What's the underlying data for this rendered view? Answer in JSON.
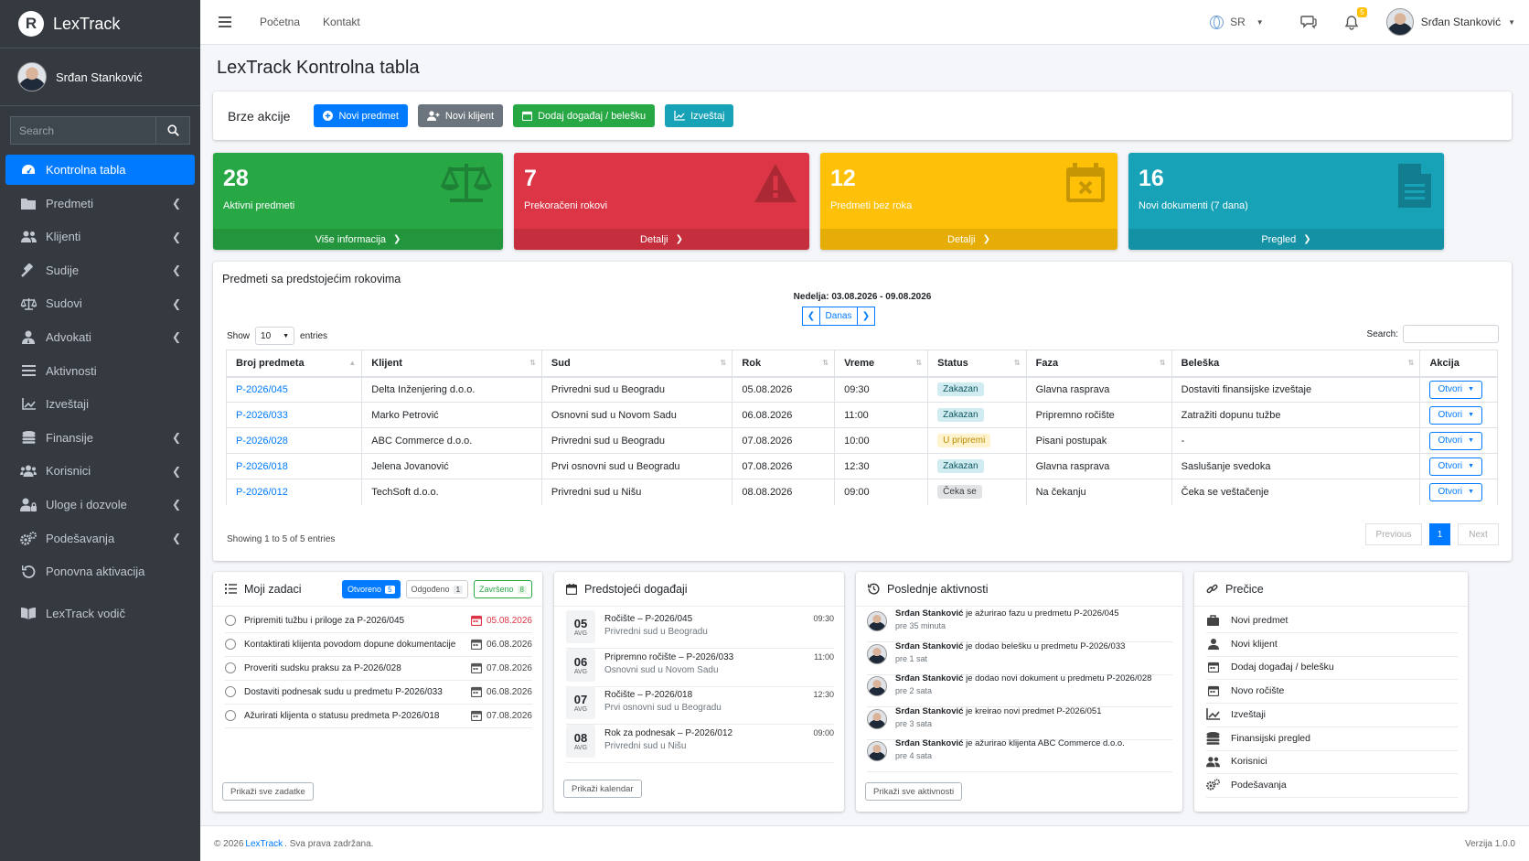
{
  "brand": {
    "name": "LexTrack",
    "logo_letter": "R"
  },
  "user": {
    "name": "Srđan Stanković"
  },
  "sidebar": {
    "search_placeholder": "Search",
    "items": [
      {
        "label": "Kontrolna tabla",
        "icon": "dashboard-icon",
        "active": true
      },
      {
        "label": "Predmeti",
        "icon": "folder-icon",
        "chevron": true
      },
      {
        "label": "Klijenti",
        "icon": "users-icon",
        "chevron": true
      },
      {
        "label": "Sudije",
        "icon": "gavel-icon",
        "chevron": true
      },
      {
        "label": "Sudovi",
        "icon": "scale-icon",
        "chevron": true
      },
      {
        "label": "Advokati",
        "icon": "user-tie-icon",
        "chevron": true
      },
      {
        "label": "Aktivnosti",
        "icon": "list-icon"
      },
      {
        "label": "Izveštaji",
        "icon": "chart-icon"
      },
      {
        "label": "Finansije",
        "icon": "coins-icon",
        "chevron": true
      },
      {
        "label": "Korisnici",
        "icon": "user-group-icon",
        "chevron": true
      },
      {
        "label": "Uloge i dozvole",
        "icon": "user-lock-icon",
        "chevron": true
      },
      {
        "label": "Podešavanja",
        "icon": "cogs-icon",
        "chevron": true
      },
      {
        "label": "Ponovna aktivacija",
        "icon": "undo-icon"
      }
    ],
    "guide": {
      "label": "LexTrack vodič",
      "icon": "book-icon"
    }
  },
  "topbar": {
    "links": [
      "Početna",
      "Kontakt"
    ],
    "language": "SR",
    "notification_count": "5",
    "user_name": "Srđan Stanković"
  },
  "page": {
    "title": "LexTrack Kontrolna tabla"
  },
  "quick_actions": {
    "title": "Brze akcije",
    "buttons": [
      "Novi predmet",
      "Novi klijent",
      "Dodaj događaj / belešku",
      "Izveštaj"
    ]
  },
  "stats": [
    {
      "value": "28",
      "label": "Aktivni predmeti",
      "link": "Više informacija",
      "color": "#28a745",
      "icon": "scale-icon"
    },
    {
      "value": "7",
      "label": "Prekoračeni rokovi",
      "link": "Detalji",
      "color": "#dc3545",
      "icon": "warning-icon"
    },
    {
      "value": "12",
      "label": "Predmeti bez roka",
      "link": "Detalji",
      "color": "#ffc107",
      "icon": "calendar-times-icon"
    },
    {
      "value": "16",
      "label": "Novi dokumenti (7 dana)",
      "link": "Pregled",
      "color": "#17a2b8",
      "icon": "document-icon"
    }
  ],
  "deadlines": {
    "title": "Predmeti sa predstojećim rokovima",
    "week_label": "Nedelja: 03.08.2026 - 09.08.2026",
    "today_label": "Danas",
    "show_label": "Show",
    "entries_label": "entries",
    "page_size": "10",
    "search_label": "Search:",
    "columns": [
      "Broj predmeta",
      "Klijent",
      "Sud",
      "Rok",
      "Vreme",
      "Status",
      "Faza",
      "Beleška",
      "Akcija"
    ],
    "rows": [
      {
        "case": "P-2026/045",
        "client": "Delta Inženjering d.o.o.",
        "court": "Privredni sud u Beogradu",
        "deadline": "05.08.2026",
        "time": "09:30",
        "status": "Zakazan",
        "status_type": "zak",
        "phase": "Glavna rasprava",
        "note": "Dostaviti finansijske izveštaje",
        "action": "Otvori"
      },
      {
        "case": "P-2026/033",
        "client": "Marko Petrović",
        "court": "Osnovni sud u Novom Sadu",
        "deadline": "06.08.2026",
        "time": "11:00",
        "status": "Zakazan",
        "status_type": "zak",
        "phase": "Pripremno ročište",
        "note": "Zatražiti dopunu tužbe",
        "action": "Otvori"
      },
      {
        "case": "P-2026/028",
        "client": "ABC Commerce d.o.o.",
        "court": "Privredni sud u Beogradu",
        "deadline": "07.08.2026",
        "time": "10:00",
        "status": "U pripremi",
        "status_type": "upr",
        "phase": "Pisani postupak",
        "note": "-",
        "action": "Otvori"
      },
      {
        "case": "P-2026/018",
        "client": "Jelena Jovanović",
        "court": "Prvi osnovni sud u Beogradu",
        "deadline": "07.08.2026",
        "time": "12:30",
        "status": "Zakazan",
        "status_type": "zak",
        "phase": "Glavna rasprava",
        "note": "Saslušanje svedoka",
        "action": "Otvori"
      },
      {
        "case": "P-2026/012",
        "client": "TechSoft d.o.o.",
        "court": "Privredni sud u Nišu",
        "deadline": "08.08.2026",
        "time": "09:00",
        "status": "Čeka se",
        "status_type": "cek",
        "phase": "Na čekanju",
        "note": "Čeka se veštačenje",
        "action": "Otvori"
      }
    ],
    "info": "Showing 1 to 5 of 5 entries",
    "pagination": {
      "previous": "Previous",
      "current": "1",
      "next": "Next"
    }
  },
  "tasks": {
    "title": "Moji zadaci",
    "tabs": [
      {
        "label": "Otvoreno",
        "count": "5"
      },
      {
        "label": "Odgođeno",
        "count": "1"
      },
      {
        "label": "Završeno",
        "count": "8"
      }
    ],
    "items": [
      {
        "label": "Pripremiti tužbu i priloge za P-2026/045",
        "date": "05.08.2026",
        "overdue": true
      },
      {
        "label": "Kontaktirati klijenta povodom dopune dokumentacije",
        "date": "06.08.2026"
      },
      {
        "label": "Proveriti sudsku praksu za P-2026/028",
        "date": "07.08.2026"
      },
      {
        "label": "Dostaviti podnesak sudu u predmetu P-2026/033",
        "date": "06.08.2026"
      },
      {
        "label": "Ažurirati klijenta o statusu predmeta P-2026/018",
        "date": "07.08.2026"
      }
    ],
    "button": "Prikaži sve zadatke"
  },
  "events": {
    "title": "Predstojeći događaji",
    "items": [
      {
        "day": "05",
        "month": "AVG",
        "title": "Ročište – P-2026/045",
        "place": "Privredni sud u Beogradu",
        "time": "09:30"
      },
      {
        "day": "06",
        "month": "AVG",
        "title": "Pripremno ročište – P-2026/033",
        "place": "Osnovni sud u Novom Sadu",
        "time": "11:00"
      },
      {
        "day": "07",
        "month": "AVG",
        "title": "Ročište – P-2026/018",
        "place": "Prvi osnovni sud u Beogradu",
        "time": "12:30"
      },
      {
        "day": "08",
        "month": "AVG",
        "title": "Rok za podnesak – P-2026/012",
        "place": "Privredni sud u Nišu",
        "time": "09:00"
      }
    ],
    "button": "Prikaži kalendar"
  },
  "activities": {
    "title": "Poslednje aktivnosti",
    "items": [
      {
        "user": "Srđan Stanković",
        "text": " je ažurirao fazu u predmetu P-2026/045",
        "ago": "pre 35 minuta"
      },
      {
        "user": "Srđan Stanković",
        "text": " je dodao belešku u predmetu P-2026/033",
        "ago": "pre 1 sat"
      },
      {
        "user": "Srđan Stanković",
        "text": " je dodao novi dokument u predmetu P-2026/028",
        "ago": "pre 2 sata"
      },
      {
        "user": "Srđan Stanković",
        "text": " je kreirao novi predmet P-2026/051",
        "ago": "pre 3 sata"
      },
      {
        "user": "Srđan Stanković",
        "text": " je ažurirao klijenta ABC Commerce d.o.o.",
        "ago": "pre 4 sata"
      }
    ],
    "button": "Prikaži sve aktivnosti"
  },
  "shortcuts": {
    "title": "Prečice",
    "items": [
      {
        "label": "Novi predmet",
        "icon": "briefcase-icon"
      },
      {
        "label": "Novi klijent",
        "icon": "user-icon"
      },
      {
        "label": "Dodaj događaj / belešku",
        "icon": "calendar-icon"
      },
      {
        "label": "Novo ročište",
        "icon": "calendar-icon"
      },
      {
        "label": "Izveštaji",
        "icon": "chart-icon"
      },
      {
        "label": "Finansijski pregled",
        "icon": "coins-icon"
      },
      {
        "label": "Korisnici",
        "icon": "users-icon"
      },
      {
        "label": "Podešavanja",
        "icon": "cogs-icon"
      }
    ]
  },
  "footer": {
    "copy_prefix": "© 2026 ",
    "brand_link": "LexTrack",
    "copy_suffix": ". Sva prava zadržana.",
    "version": "Verzija 1.0.0"
  }
}
